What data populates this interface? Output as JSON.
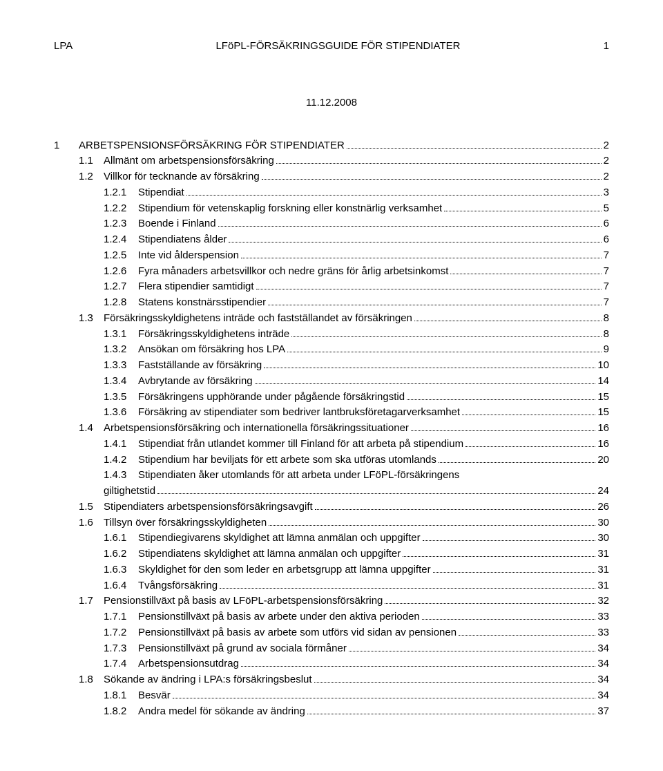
{
  "header": {
    "left": "LPA",
    "center": "LFöPL-FÖRSÄKRINGSGUIDE FÖR STIPENDIATER",
    "pageno": "1"
  },
  "date": "11.12.2008",
  "toc": [
    {
      "lvl": 1,
      "num": "1",
      "title": "ARBETSPENSIONSFÖRSÄKRING FÖR STIPENDIATER",
      "page": "2"
    },
    {
      "lvl": 2,
      "num": "1.1",
      "title": "Allmänt om arbetspensionsförsäkring",
      "page": "2"
    },
    {
      "lvl": 2,
      "num": "1.2",
      "title": "Villkor för tecknande av försäkring",
      "page": "2"
    },
    {
      "lvl": 3,
      "num": "1.2.1",
      "title": "Stipendiat",
      "page": "3"
    },
    {
      "lvl": 3,
      "num": "1.2.2",
      "title": "Stipendium för vetenskaplig forskning eller konstnärlig verksamhet",
      "page": "5"
    },
    {
      "lvl": 3,
      "num": "1.2.3",
      "title": "Boende i Finland",
      "page": "6"
    },
    {
      "lvl": 3,
      "num": "1.2.4",
      "title": "Stipendiatens ålder",
      "page": "6"
    },
    {
      "lvl": 3,
      "num": "1.2.5",
      "title": "Inte vid ålderspension",
      "page": "7"
    },
    {
      "lvl": 3,
      "num": "1.2.6",
      "title": "Fyra månaders arbetsvillkor och nedre gräns för årlig arbetsinkomst",
      "page": "7"
    },
    {
      "lvl": 3,
      "num": "1.2.7",
      "title": "Flera stipendier samtidigt",
      "page": "7"
    },
    {
      "lvl": 3,
      "num": "1.2.8",
      "title": "Statens konstnärsstipendier",
      "page": "7"
    },
    {
      "lvl": 2,
      "num": "1.3",
      "title": "Försäkringsskyldighetens inträde och fastställandet av försäkringen",
      "page": "8"
    },
    {
      "lvl": 3,
      "num": "1.3.1",
      "title": "Försäkringsskyldighetens inträde",
      "page": "8"
    },
    {
      "lvl": 3,
      "num": "1.3.2",
      "title": "Ansökan om försäkring hos LPA",
      "page": "9"
    },
    {
      "lvl": 3,
      "num": "1.3.3",
      "title": "Fastställande av försäkring",
      "page": "10"
    },
    {
      "lvl": 3,
      "num": "1.3.4",
      "title": "Avbrytande av försäkring",
      "page": "14"
    },
    {
      "lvl": 3,
      "num": "1.3.5",
      "title": "Försäkringens upphörande under pågående försäkringstid",
      "page": "15"
    },
    {
      "lvl": 3,
      "num": "1.3.6",
      "title": "Försäkring av stipendiater som bedriver lantbruksföretagarverksamhet",
      "page": "15"
    },
    {
      "lvl": 2,
      "num": "1.4",
      "title": "Arbetspensionsförsäkring och internationella försäkringssituationer",
      "page": "16"
    },
    {
      "lvl": 3,
      "num": "1.4.1",
      "title": "Stipendiat från utlandet kommer till Finland för att arbeta på stipendium",
      "page": "16"
    },
    {
      "lvl": 3,
      "num": "1.4.2",
      "title": "Stipendium har beviljats för ett arbete som ska utföras utomlands",
      "page": "20"
    },
    {
      "lvl": 3,
      "num": "1.4.3",
      "title": "Stipendiaten åker utomlands för att arbeta under LFöPL-försäkringens",
      "page": null,
      "cont": "giltighetstid",
      "contpage": "24"
    },
    {
      "lvl": 2,
      "num": "1.5",
      "title": "Stipendiaters arbetspensionsförsäkringsavgift",
      "page": "26"
    },
    {
      "lvl": 2,
      "num": "1.6",
      "title": "Tillsyn över försäkringsskyldigheten",
      "page": "30"
    },
    {
      "lvl": 3,
      "num": "1.6.1",
      "title": "Stipendiegivarens skyldighet att lämna anmälan och uppgifter",
      "page": "30"
    },
    {
      "lvl": 3,
      "num": "1.6.2",
      "title": "Stipendiatens skyldighet att lämna anmälan och uppgifter",
      "page": "31"
    },
    {
      "lvl": 3,
      "num": "1.6.3",
      "title": "Skyldighet för den som leder en arbetsgrupp att lämna uppgifter",
      "page": "31"
    },
    {
      "lvl": 3,
      "num": "1.6.4",
      "title": "Tvångsförsäkring",
      "page": "31"
    },
    {
      "lvl": 2,
      "num": "1.7",
      "title": "Pensionstillväxt på basis av LFöPL-arbetspensionsförsäkring",
      "page": "32"
    },
    {
      "lvl": 3,
      "num": "1.7.1",
      "title": "Pensionstillväxt på basis av arbete under den aktiva perioden",
      "page": "33"
    },
    {
      "lvl": 3,
      "num": "1.7.2",
      "title": "Pensionstillväxt på basis av arbete som utförs vid sidan av pensionen",
      "page": "33"
    },
    {
      "lvl": 3,
      "num": "1.7.3",
      "title": "Pensionstillväxt på grund av sociala förmåner",
      "page": "34"
    },
    {
      "lvl": 3,
      "num": "1.7.4",
      "title": "Arbetspensionsutdrag",
      "page": "34"
    },
    {
      "lvl": 2,
      "num": "1.8",
      "title": "Sökande av ändring i LPA:s försäkringsbeslut",
      "page": "34"
    },
    {
      "lvl": 3,
      "num": "1.8.1",
      "title": "Besvär",
      "page": "34"
    },
    {
      "lvl": 3,
      "num": "1.8.2",
      "title": "Andra medel för sökande av ändring",
      "page": "37"
    }
  ]
}
